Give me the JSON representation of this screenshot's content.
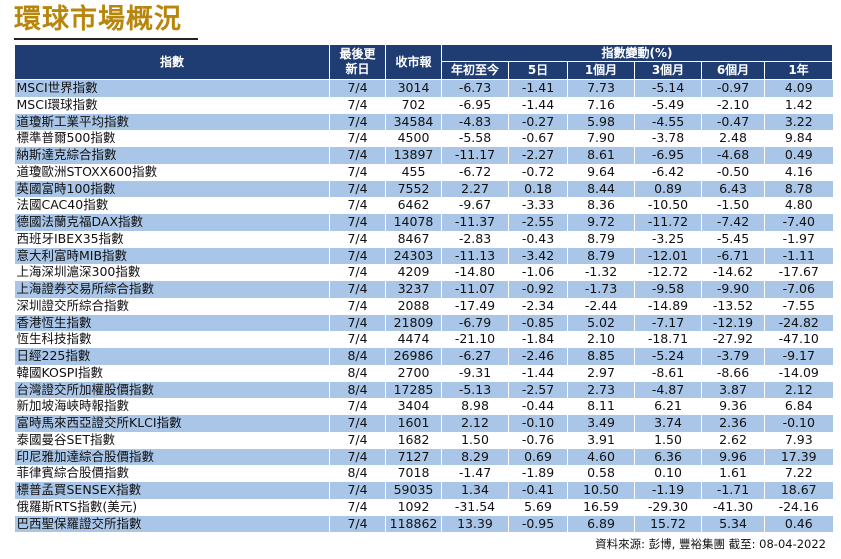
{
  "title": "環球市場概況",
  "headers": {
    "index": "指數",
    "last_update": "最後更新日",
    "close": "收市報",
    "change_group": "指數變動(%)",
    "periods": [
      "年初至今",
      "5日",
      "1個月",
      "3個月",
      "6個月",
      "1年"
    ]
  },
  "rows": [
    {
      "name": "MSCI世界指數",
      "date": "7/4",
      "close": "3014",
      "ytd": "-6.73",
      "d5": "-1.41",
      "m1": "7.73",
      "m3": "-5.14",
      "m6": "-0.97",
      "y1": "4.09"
    },
    {
      "name": "MSCI環球指數",
      "date": "7/4",
      "close": "702",
      "ytd": "-6.95",
      "d5": "-1.44",
      "m1": "7.16",
      "m3": "-5.49",
      "m6": "-2.10",
      "y1": "1.42"
    },
    {
      "name": "道瓊斯工業平均指數",
      "date": "7/4",
      "close": "34584",
      "ytd": "-4.83",
      "d5": "-0.27",
      "m1": "5.98",
      "m3": "-4.55",
      "m6": "-0.47",
      "y1": "3.22"
    },
    {
      "name": "標準普爾500指數",
      "date": "7/4",
      "close": "4500",
      "ytd": "-5.58",
      "d5": "-0.67",
      "m1": "7.90",
      "m3": "-3.78",
      "m6": "2.48",
      "y1": "9.84"
    },
    {
      "name": "納斯達克綜合指數",
      "date": "7/4",
      "close": "13897",
      "ytd": "-11.17",
      "d5": "-2.27",
      "m1": "8.61",
      "m3": "-6.95",
      "m6": "-4.68",
      "y1": "0.49"
    },
    {
      "name": "道瓊歐洲STOXX600指數",
      "date": "7/4",
      "close": "455",
      "ytd": "-6.72",
      "d5": "-0.72",
      "m1": "9.64",
      "m3": "-6.42",
      "m6": "-0.50",
      "y1": "4.16"
    },
    {
      "name": "英國富時100指數",
      "date": "7/4",
      "close": "7552",
      "ytd": "2.27",
      "d5": "0.18",
      "m1": "8.44",
      "m3": "0.89",
      "m6": "6.43",
      "y1": "8.78"
    },
    {
      "name": "法國CAC40指數",
      "date": "7/4",
      "close": "6462",
      "ytd": "-9.67",
      "d5": "-3.33",
      "m1": "8.36",
      "m3": "-10.50",
      "m6": "-1.50",
      "y1": "4.80"
    },
    {
      "name": "德國法蘭克福DAX指數",
      "date": "7/4",
      "close": "14078",
      "ytd": "-11.37",
      "d5": "-2.55",
      "m1": "9.72",
      "m3": "-11.72",
      "m6": "-7.42",
      "y1": "-7.40"
    },
    {
      "name": "西班牙IBEX35指數",
      "date": "7/4",
      "close": "8467",
      "ytd": "-2.83",
      "d5": "-0.43",
      "m1": "8.79",
      "m3": "-3.25",
      "m6": "-5.45",
      "y1": "-1.97"
    },
    {
      "name": "意大利富時MIB指數",
      "date": "7/4",
      "close": "24303",
      "ytd": "-11.13",
      "d5": "-3.42",
      "m1": "8.79",
      "m3": "-12.01",
      "m6": "-6.71",
      "y1": "-1.11"
    },
    {
      "name": "上海深圳滬深300指數",
      "date": "7/4",
      "close": "4209",
      "ytd": "-14.80",
      "d5": "-1.06",
      "m1": "-1.32",
      "m3": "-12.72",
      "m6": "-14.62",
      "y1": "-17.67"
    },
    {
      "name": "上海證券交易所綜合指數",
      "date": "7/4",
      "close": "3237",
      "ytd": "-11.07",
      "d5": "-0.92",
      "m1": "-1.73",
      "m3": "-9.58",
      "m6": "-9.90",
      "y1": "-7.06"
    },
    {
      "name": "深圳證交所綜合指數",
      "date": "7/4",
      "close": "2088",
      "ytd": "-17.49",
      "d5": "-2.34",
      "m1": "-2.44",
      "m3": "-14.89",
      "m6": "-13.52",
      "y1": "-7.55"
    },
    {
      "name": "香港恆生指數",
      "date": "7/4",
      "close": "21809",
      "ytd": "-6.79",
      "d5": "-0.85",
      "m1": "5.02",
      "m3": "-7.17",
      "m6": "-12.19",
      "y1": "-24.82"
    },
    {
      "name": "恆生科技指數",
      "date": "7/4",
      "close": "4474",
      "ytd": "-21.10",
      "d5": "-1.84",
      "m1": "2.10",
      "m3": "-18.71",
      "m6": "-27.92",
      "y1": "-47.10"
    },
    {
      "name": "日經225指數",
      "date": "8/4",
      "close": "26986",
      "ytd": "-6.27",
      "d5": "-2.46",
      "m1": "8.85",
      "m3": "-5.24",
      "m6": "-3.79",
      "y1": "-9.17"
    },
    {
      "name": "韓國KOSPI指數",
      "date": "8/4",
      "close": "2700",
      "ytd": "-9.31",
      "d5": "-1.44",
      "m1": "2.97",
      "m3": "-8.61",
      "m6": "-8.66",
      "y1": "-14.09"
    },
    {
      "name": "台灣證交所加權股價指數",
      "date": "8/4",
      "close": "17285",
      "ytd": "-5.13",
      "d5": "-2.57",
      "m1": "2.73",
      "m3": "-4.87",
      "m6": "3.87",
      "y1": "2.12"
    },
    {
      "name": "新加坡海峽時報指數",
      "date": "7/4",
      "close": "3404",
      "ytd": "8.98",
      "d5": "-0.44",
      "m1": "8.11",
      "m3": "6.21",
      "m6": "9.36",
      "y1": "6.84"
    },
    {
      "name": "富時馬來西亞證交所KLCI指數",
      "date": "7/4",
      "close": "1601",
      "ytd": "2.12",
      "d5": "-0.10",
      "m1": "3.49",
      "m3": "3.74",
      "m6": "2.36",
      "y1": "-0.10"
    },
    {
      "name": "泰國曼谷SET指數",
      "date": "7/4",
      "close": "1682",
      "ytd": "1.50",
      "d5": "-0.76",
      "m1": "3.91",
      "m3": "1.50",
      "m6": "2.62",
      "y1": "7.93"
    },
    {
      "name": "印尼雅加達綜合股價指數",
      "date": "7/4",
      "close": "7127",
      "ytd": "8.29",
      "d5": "0.69",
      "m1": "4.60",
      "m3": "6.36",
      "m6": "9.96",
      "y1": "17.39"
    },
    {
      "name": "菲律賓綜合股價指數",
      "date": "8/4",
      "close": "7018",
      "ytd": "-1.47",
      "d5": "-1.89",
      "m1": "0.58",
      "m3": "0.10",
      "m6": "1.61",
      "y1": "7.22"
    },
    {
      "name": "標普孟買SENSEX指數",
      "date": "7/4",
      "close": "59035",
      "ytd": "1.34",
      "d5": "-0.41",
      "m1": "10.50",
      "m3": "-1.19",
      "m6": "-1.71",
      "y1": "18.67"
    },
    {
      "name": "俄羅斯RTS指數(美元)",
      "date": "7/4",
      "close": "1092",
      "ytd": "-31.54",
      "d5": "5.69",
      "m1": "16.59",
      "m3": "-29.30",
      "m6": "-41.30",
      "y1": "-24.16"
    },
    {
      "name": "巴西聖保羅證交所指數",
      "date": "7/4",
      "close": "118862",
      "ytd": "13.39",
      "d5": "-0.95",
      "m1": "6.89",
      "m3": "15.72",
      "m6": "5.34",
      "y1": "0.46"
    }
  ],
  "source": "資料來源: 彭博, 豐裕集團 截至: 08-04-2022",
  "colors": {
    "title": "#B8860B",
    "header_bg": "#1F3D73",
    "row_blue": "#A9C6E8",
    "row_white": "#FFFFFF"
  }
}
